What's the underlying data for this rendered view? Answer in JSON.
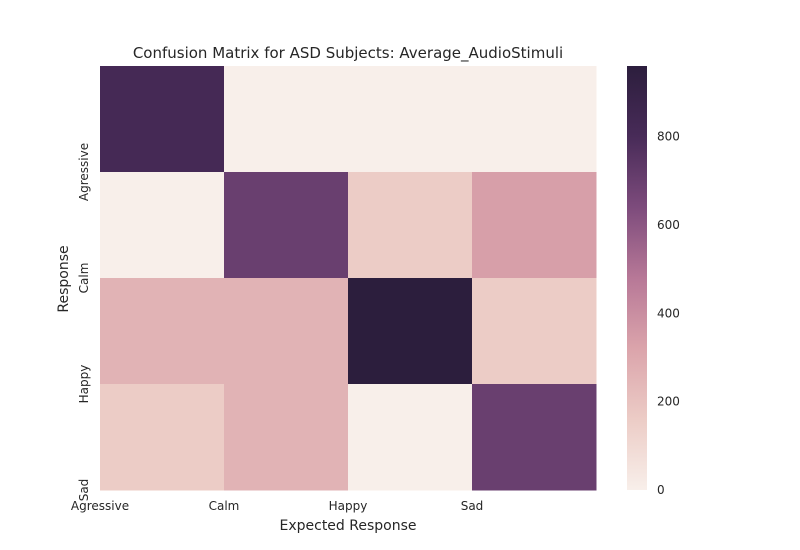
{
  "chart_data": {
    "type": "heatmap",
    "title": "Confusion Matrix for ASD Subjects: Average_AudioStimuli",
    "xlabel": "Expected Response",
    "ylabel": "Response",
    "x_tick_labels": [
      "Agressive",
      "Calm",
      "Happy",
      "Sad"
    ],
    "y_tick_labels": [
      "Agressive",
      "Calm",
      "Happy",
      "Sad"
    ],
    "rows": 4,
    "cols": 4,
    "values": [
      [
        820,
        0,
        0,
        0
      ],
      [
        0,
        700,
        160,
        340
      ],
      [
        260,
        260,
        960,
        160
      ],
      [
        160,
        260,
        0,
        700
      ]
    ],
    "colorbar": {
      "min": 0,
      "max": 960,
      "ticks": [
        0,
        200,
        400,
        600,
        800
      ],
      "colors": [
        "#f8efea",
        "#ecccc6",
        "#dba4ab",
        "#b77897",
        "#7d4b7c",
        "#482b58",
        "#2c1e3d"
      ]
    },
    "grid": false,
    "legend": "colorbar-right"
  }
}
